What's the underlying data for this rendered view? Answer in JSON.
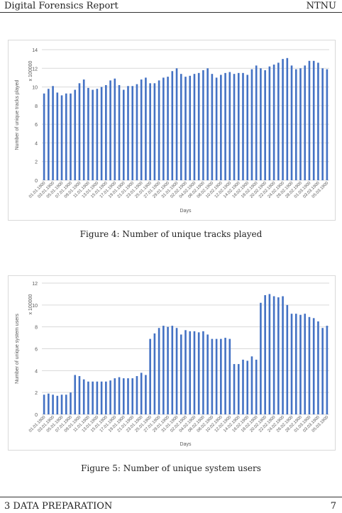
{
  "header": {
    "left": "Digital Forensics Report",
    "right": "NTNU"
  },
  "footer": {
    "section": "3   DATA PREPARATION",
    "page": "7"
  },
  "captions": {
    "fig4": "Figure 4: Number of unique tracks played",
    "fig5": "Figure 5: Number of unique system users"
  },
  "colors": {
    "bar": "#4472C4",
    "grid": "#d9d9d9",
    "axis_text": "#595959"
  },
  "chart_data": [
    {
      "type": "bar",
      "ylabel": "Number of unique tracks played",
      "unit_label": "x 100000",
      "xlabel": "Days",
      "ylim": [
        0,
        14
      ],
      "yticks": [
        0,
        2,
        4,
        6,
        8,
        10,
        12,
        14
      ],
      "grid": true,
      "x_tick_labels": [
        "01.01.1900",
        "03.01.1900",
        "05.01.1900",
        "07.01.1900",
        "09.01.1900",
        "11.01.1900",
        "13.01.1900",
        "15.01.1900",
        "17.01.1900",
        "19.01.1900",
        "21.01.1900",
        "23.01.1900",
        "25.01.1900",
        "27.01.1900",
        "29.01.1900",
        "31.01.1900",
        "02.02.1900",
        "04.02.1900",
        "06.02.1900",
        "08.02.1900",
        "10.02.1900",
        "12.02.1900",
        "14.02.1900",
        "16.02.1900",
        "18.02.1900",
        "20.02.1900",
        "22.02.1900",
        "24.02.1900",
        "26.02.1900",
        "28.02.1900",
        "01.03.1900",
        "03.03.1900",
        "05.03.1900"
      ],
      "values": [
        9.3,
        9.8,
        10.1,
        9.4,
        9.1,
        9.3,
        9.3,
        9.7,
        10.4,
        10.8,
        9.9,
        9.7,
        9.8,
        10.0,
        10.2,
        10.7,
        10.9,
        10.2,
        9.7,
        10.1,
        10.1,
        10.3,
        10.8,
        11.0,
        10.4,
        10.4,
        10.7,
        11.0,
        11.1,
        11.7,
        12.0,
        11.4,
        11.1,
        11.2,
        11.4,
        11.5,
        11.8,
        12.0,
        11.4,
        11.0,
        11.3,
        11.5,
        11.6,
        11.4,
        11.5,
        11.5,
        11.3,
        11.9,
        12.3,
        12.0,
        11.8,
        12.2,
        12.4,
        12.6,
        13.0,
        13.1,
        12.3,
        11.9,
        12.0,
        12.3,
        12.8,
        12.8,
        12.6,
        12.0,
        11.9
      ]
    },
    {
      "type": "bar",
      "ylabel": "Number of unique system users",
      "unit_label": "x 100000",
      "xlabel": "Days",
      "ylim": [
        0,
        12
      ],
      "yticks": [
        0,
        2,
        4,
        6,
        8,
        10,
        12
      ],
      "grid": true,
      "x_tick_labels": [
        "01.01.1900",
        "03.01.1900",
        "05.01.1900",
        "07.01.1900",
        "09.01.1900",
        "11.01.1900",
        "13.01.1900",
        "15.01.1900",
        "17.01.1900",
        "19.01.1900",
        "21.01.1900",
        "23.01.1900",
        "25.01.1900",
        "27.01.1900",
        "29.01.1900",
        "31.01.1900",
        "02.02.1900",
        "04.02.1900",
        "06.02.1900",
        "08.02.1900",
        "10.02.1900",
        "12.02.1900",
        "14.02.1900",
        "16.02.1900",
        "18.02.1900",
        "20.02.1900",
        "22.02.1900",
        "24.02.1900",
        "26.02.1900",
        "28.02.1900",
        "01.03.1900",
        "03.03.1900",
        "05.03.1900"
      ],
      "values": [
        1.8,
        1.9,
        1.8,
        1.7,
        1.8,
        1.8,
        2.0,
        3.6,
        3.5,
        3.2,
        3.0,
        3.0,
        3.0,
        3.0,
        3.0,
        3.1,
        3.3,
        3.4,
        3.3,
        3.3,
        3.3,
        3.5,
        3.8,
        3.6,
        6.9,
        7.4,
        7.9,
        8.1,
        8.0,
        8.1,
        7.9,
        7.3,
        7.7,
        7.6,
        7.6,
        7.5,
        7.6,
        7.3,
        6.9,
        6.9,
        6.9,
        7.0,
        6.9,
        4.6,
        4.6,
        5.0,
        4.9,
        5.3,
        5.0,
        10.2,
        10.9,
        11.0,
        10.8,
        10.7,
        10.8,
        10.0,
        9.2,
        9.2,
        9.1,
        9.2,
        8.9,
        8.8,
        8.5,
        7.9,
        8.1
      ]
    }
  ]
}
